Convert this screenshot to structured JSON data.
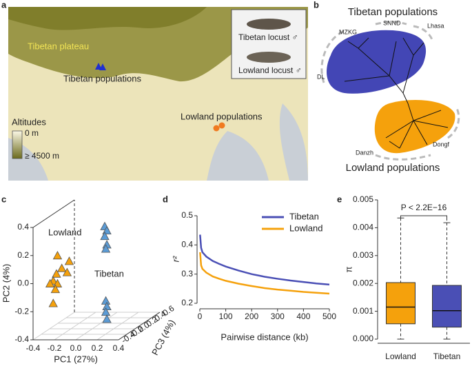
{
  "panel_labels": [
    "a",
    "b",
    "c",
    "d",
    "e"
  ],
  "map": {
    "plateau": "Tibetan plateau",
    "tibetan_populations": "Tibetan populations",
    "lowland_populations": "Lowland populations",
    "legend_title": "Altitudes",
    "legend_low": "0 m",
    "legend_high": "≥ 4500 m",
    "inset": [
      "Tibetan locust ♂",
      "Lowland locust ♂"
    ]
  },
  "tree": {
    "tibetan_title": "Tibetan populations",
    "lowland_title": "Lowland populations",
    "labels": [
      "MZKG",
      "SNND",
      "Lhasa",
      "DL",
      "Danzh",
      "Dongf"
    ]
  },
  "chart_data": [
    {
      "type": "scatter3d",
      "xlabel": "PC1 (27%)",
      "ylabel": "PC2 (4%)",
      "zlabel": "PC3 (4%)",
      "xlim": [
        -0.4,
        0.4
      ],
      "ylim": [
        -0.4,
        0.4
      ],
      "zlim": [
        -0.4,
        0.6
      ],
      "xticks": [
        -0.4,
        -0.2,
        {
          "value": 0,
          "label": "0.0"
        },
        0.2,
        0.4
      ],
      "yticks": [
        -0.4,
        -0.2,
        {
          "value": 0,
          "label": "0.0"
        },
        0.2,
        0.4
      ],
      "zticks": [
        -0.4,
        -0.2,
        {
          "value": 0,
          "label": "0.0"
        },
        0.2,
        0.4,
        0.6
      ],
      "series": [
        {
          "name": "Lowland",
          "color": "#f5a10c",
          "x": [
            -0.21,
            -0.1,
            -0.17,
            -0.12,
            -0.22,
            -0.25,
            -0.21,
            -0.28,
            -0.23,
            -0.25
          ],
          "y": [
            0.18,
            0.14,
            0.09,
            0.06,
            0.05,
            0.0,
            -0.02,
            -0.02,
            -0.06,
            -0.16
          ],
          "z": [
            -0.3,
            -0.3,
            -0.3,
            -0.3,
            -0.3,
            -0.3,
            -0.3,
            -0.3,
            -0.3,
            -0.3
          ]
        },
        {
          "name": "Tibetan",
          "color": "#5b9bd5",
          "x": [
            0.0,
            0.02,
            0.0,
            0.02,
            0.01,
            0.01,
            0.02,
            0.01,
            0.02
          ],
          "y": [
            0.27,
            0.24,
            0.2,
            0.14,
            0.11,
            -0.26,
            -0.3,
            -0.34,
            -0.39
          ],
          "z": [
            0.3,
            0.3,
            0.3,
            0.3,
            0.3,
            0.3,
            0.3,
            0.3,
            0.3
          ]
        }
      ]
    },
    {
      "type": "line",
      "xlabel": "Pairwise distance (kb)",
      "ylabel": "r²",
      "x": [
        1,
        5,
        10,
        25,
        50,
        75,
        100,
        150,
        200,
        250,
        300,
        350,
        400,
        450,
        500
      ],
      "xlim": [
        0,
        500
      ],
      "xticks": [
        0,
        100,
        200,
        300,
        400,
        500
      ],
      "ylim": [
        0.2,
        0.5
      ],
      "yticks": [
        0.2,
        0.3,
        0.4,
        0.5
      ],
      "series": [
        {
          "name": "Tibetan",
          "color": "#4a4fb5",
          "values": [
            0.435,
            0.39,
            0.375,
            0.36,
            0.345,
            0.335,
            0.326,
            0.312,
            0.3,
            0.291,
            0.284,
            0.278,
            0.273,
            0.268,
            0.264
          ]
        },
        {
          "name": "Lowland",
          "color": "#f5a10c",
          "values": [
            0.375,
            0.33,
            0.318,
            0.305,
            0.292,
            0.284,
            0.277,
            0.267,
            0.259,
            0.252,
            0.247,
            0.243,
            0.239,
            0.236,
            0.233
          ]
        }
      ]
    },
    {
      "type": "box",
      "ylabel": "π",
      "annotation": "P < 2.2E−16",
      "categories": [
        "Lowland",
        "Tibetan"
      ],
      "colors": [
        "#f5a10c",
        "#4a4fb5"
      ],
      "ylim": [
        0,
        0.005
      ],
      "yticks": [
        {
          "value": 0,
          "label": "0.000"
        },
        0.001,
        0.002,
        0.003,
        0.004,
        0.005
      ],
      "boxes": [
        {
          "min": 0.0,
          "q1": 0.00055,
          "median": 0.00115,
          "q3": 0.00203,
          "max": 0.00435
        },
        {
          "min": 0.0,
          "q1": 0.00043,
          "median": 0.00102,
          "q3": 0.00193,
          "max": 0.00418
        }
      ]
    }
  ]
}
